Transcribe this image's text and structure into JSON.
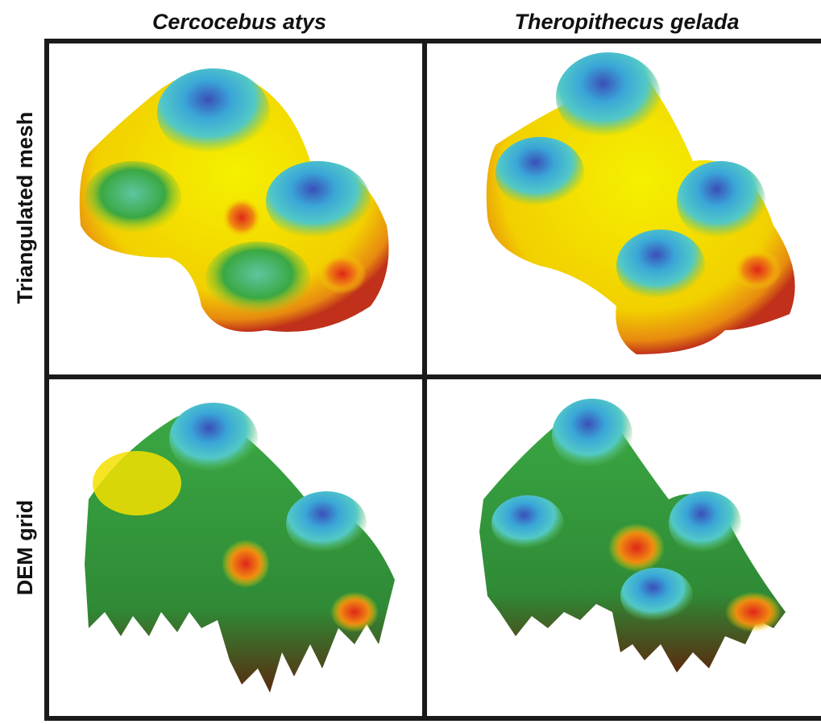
{
  "column_headers": [
    "Cercocebus atys",
    "Theropithecus gelada"
  ],
  "row_labels": [
    "Triangulated mesh",
    "DEM grid"
  ]
}
